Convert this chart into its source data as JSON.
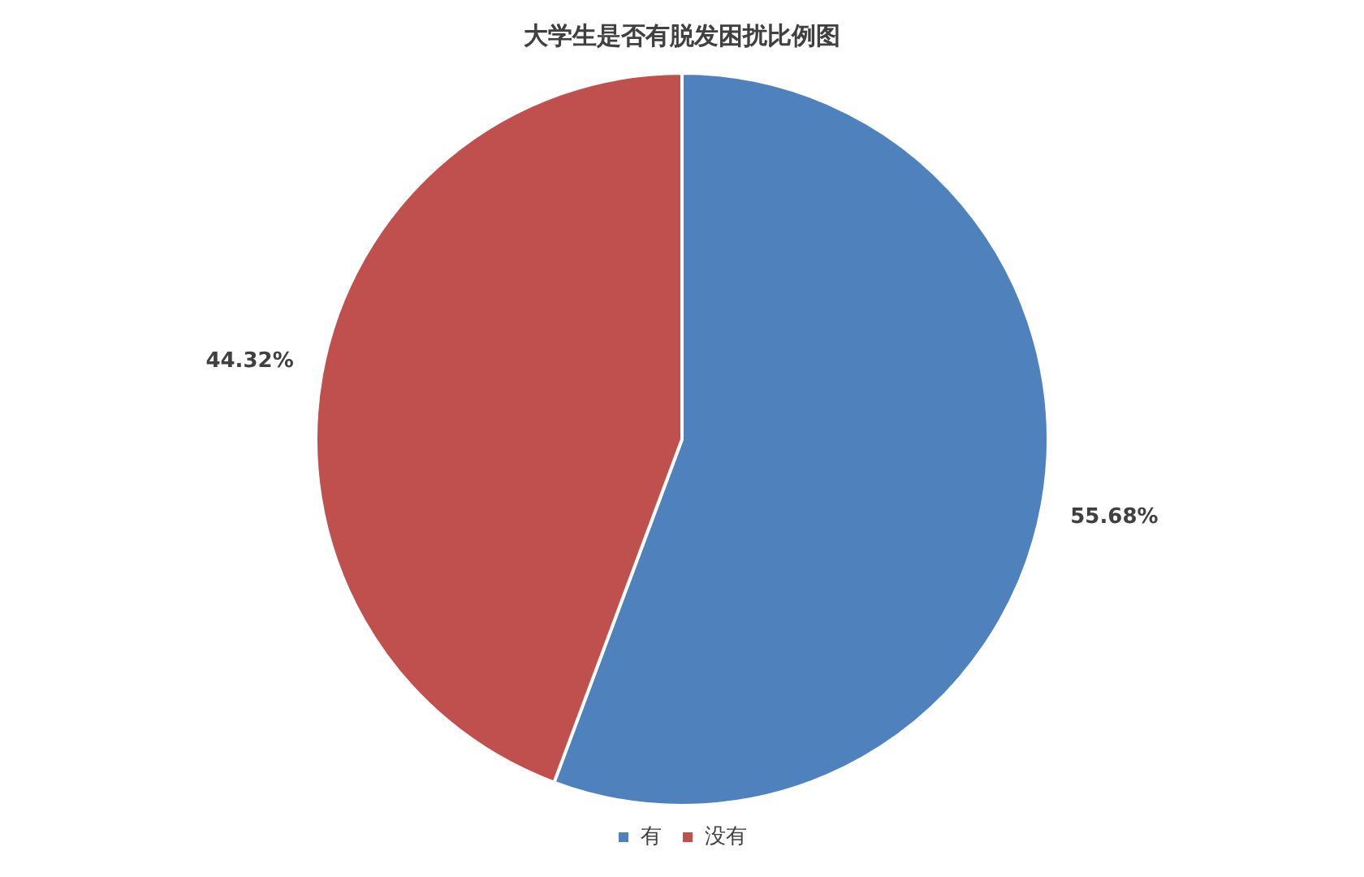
{
  "chart_data": {
    "type": "pie",
    "title": "大学生是否有脱发困扰比例图",
    "categories": [
      "有",
      "没有"
    ],
    "values": [
      55.68,
      44.32
    ],
    "colors": [
      "#4f81bd",
      "#c0504d"
    ],
    "value_labels": [
      "55.68%",
      "44.32%"
    ],
    "legend": "bottom"
  }
}
